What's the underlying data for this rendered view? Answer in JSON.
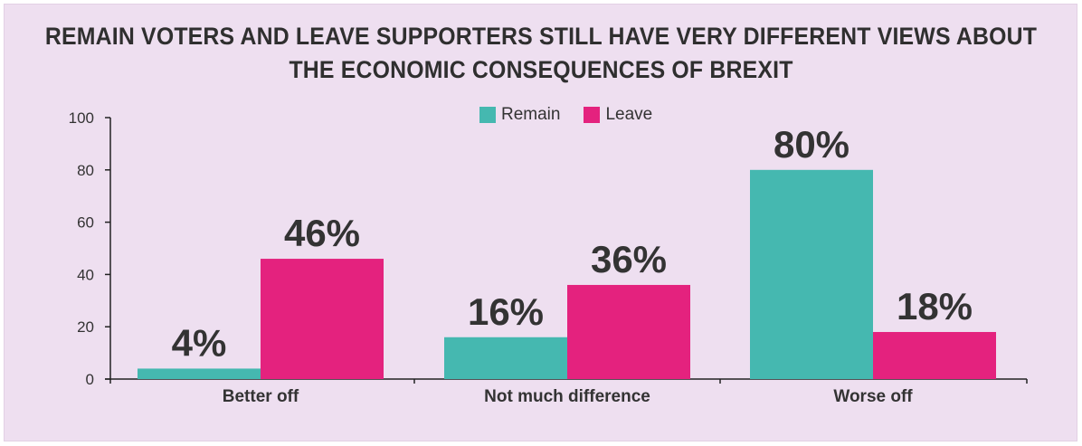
{
  "title_lines": [
    "REMAIN VOTERS AND LEAVE SUPPORTERS STILL HAVE VERY DIFFERENT VIEWS ABOUT",
    "THE ECONOMIC CONSEQUENCES OF BREXIT"
  ],
  "colors": {
    "background": "#eedff0",
    "remain": "#45b8b0",
    "leave": "#e4227e",
    "text": "#333333"
  },
  "chart_data": {
    "type": "bar",
    "title": "REMAIN VOTERS AND LEAVE SUPPORTERS STILL HAVE VERY DIFFERENT VIEWS ABOUT THE ECONOMIC CONSEQUENCES OF BREXIT",
    "categories": [
      "Better off",
      "Not much difference",
      "Worse off"
    ],
    "series": [
      {
        "name": "Remain",
        "values": [
          4,
          16,
          80
        ],
        "labels": [
          "4%",
          "16%",
          "80%"
        ],
        "color": "#45b8b0"
      },
      {
        "name": "Leave",
        "values": [
          46,
          36,
          18
        ],
        "labels": [
          "46%",
          "36%",
          "18%"
        ],
        "color": "#e4227e"
      }
    ],
    "yticks": [
      "0",
      "20",
      "40",
      "60",
      "80",
      "100"
    ],
    "ylim": [
      0,
      100
    ],
    "xlabel": "",
    "ylabel": "",
    "legend_position": "top-center",
    "grid": false
  }
}
